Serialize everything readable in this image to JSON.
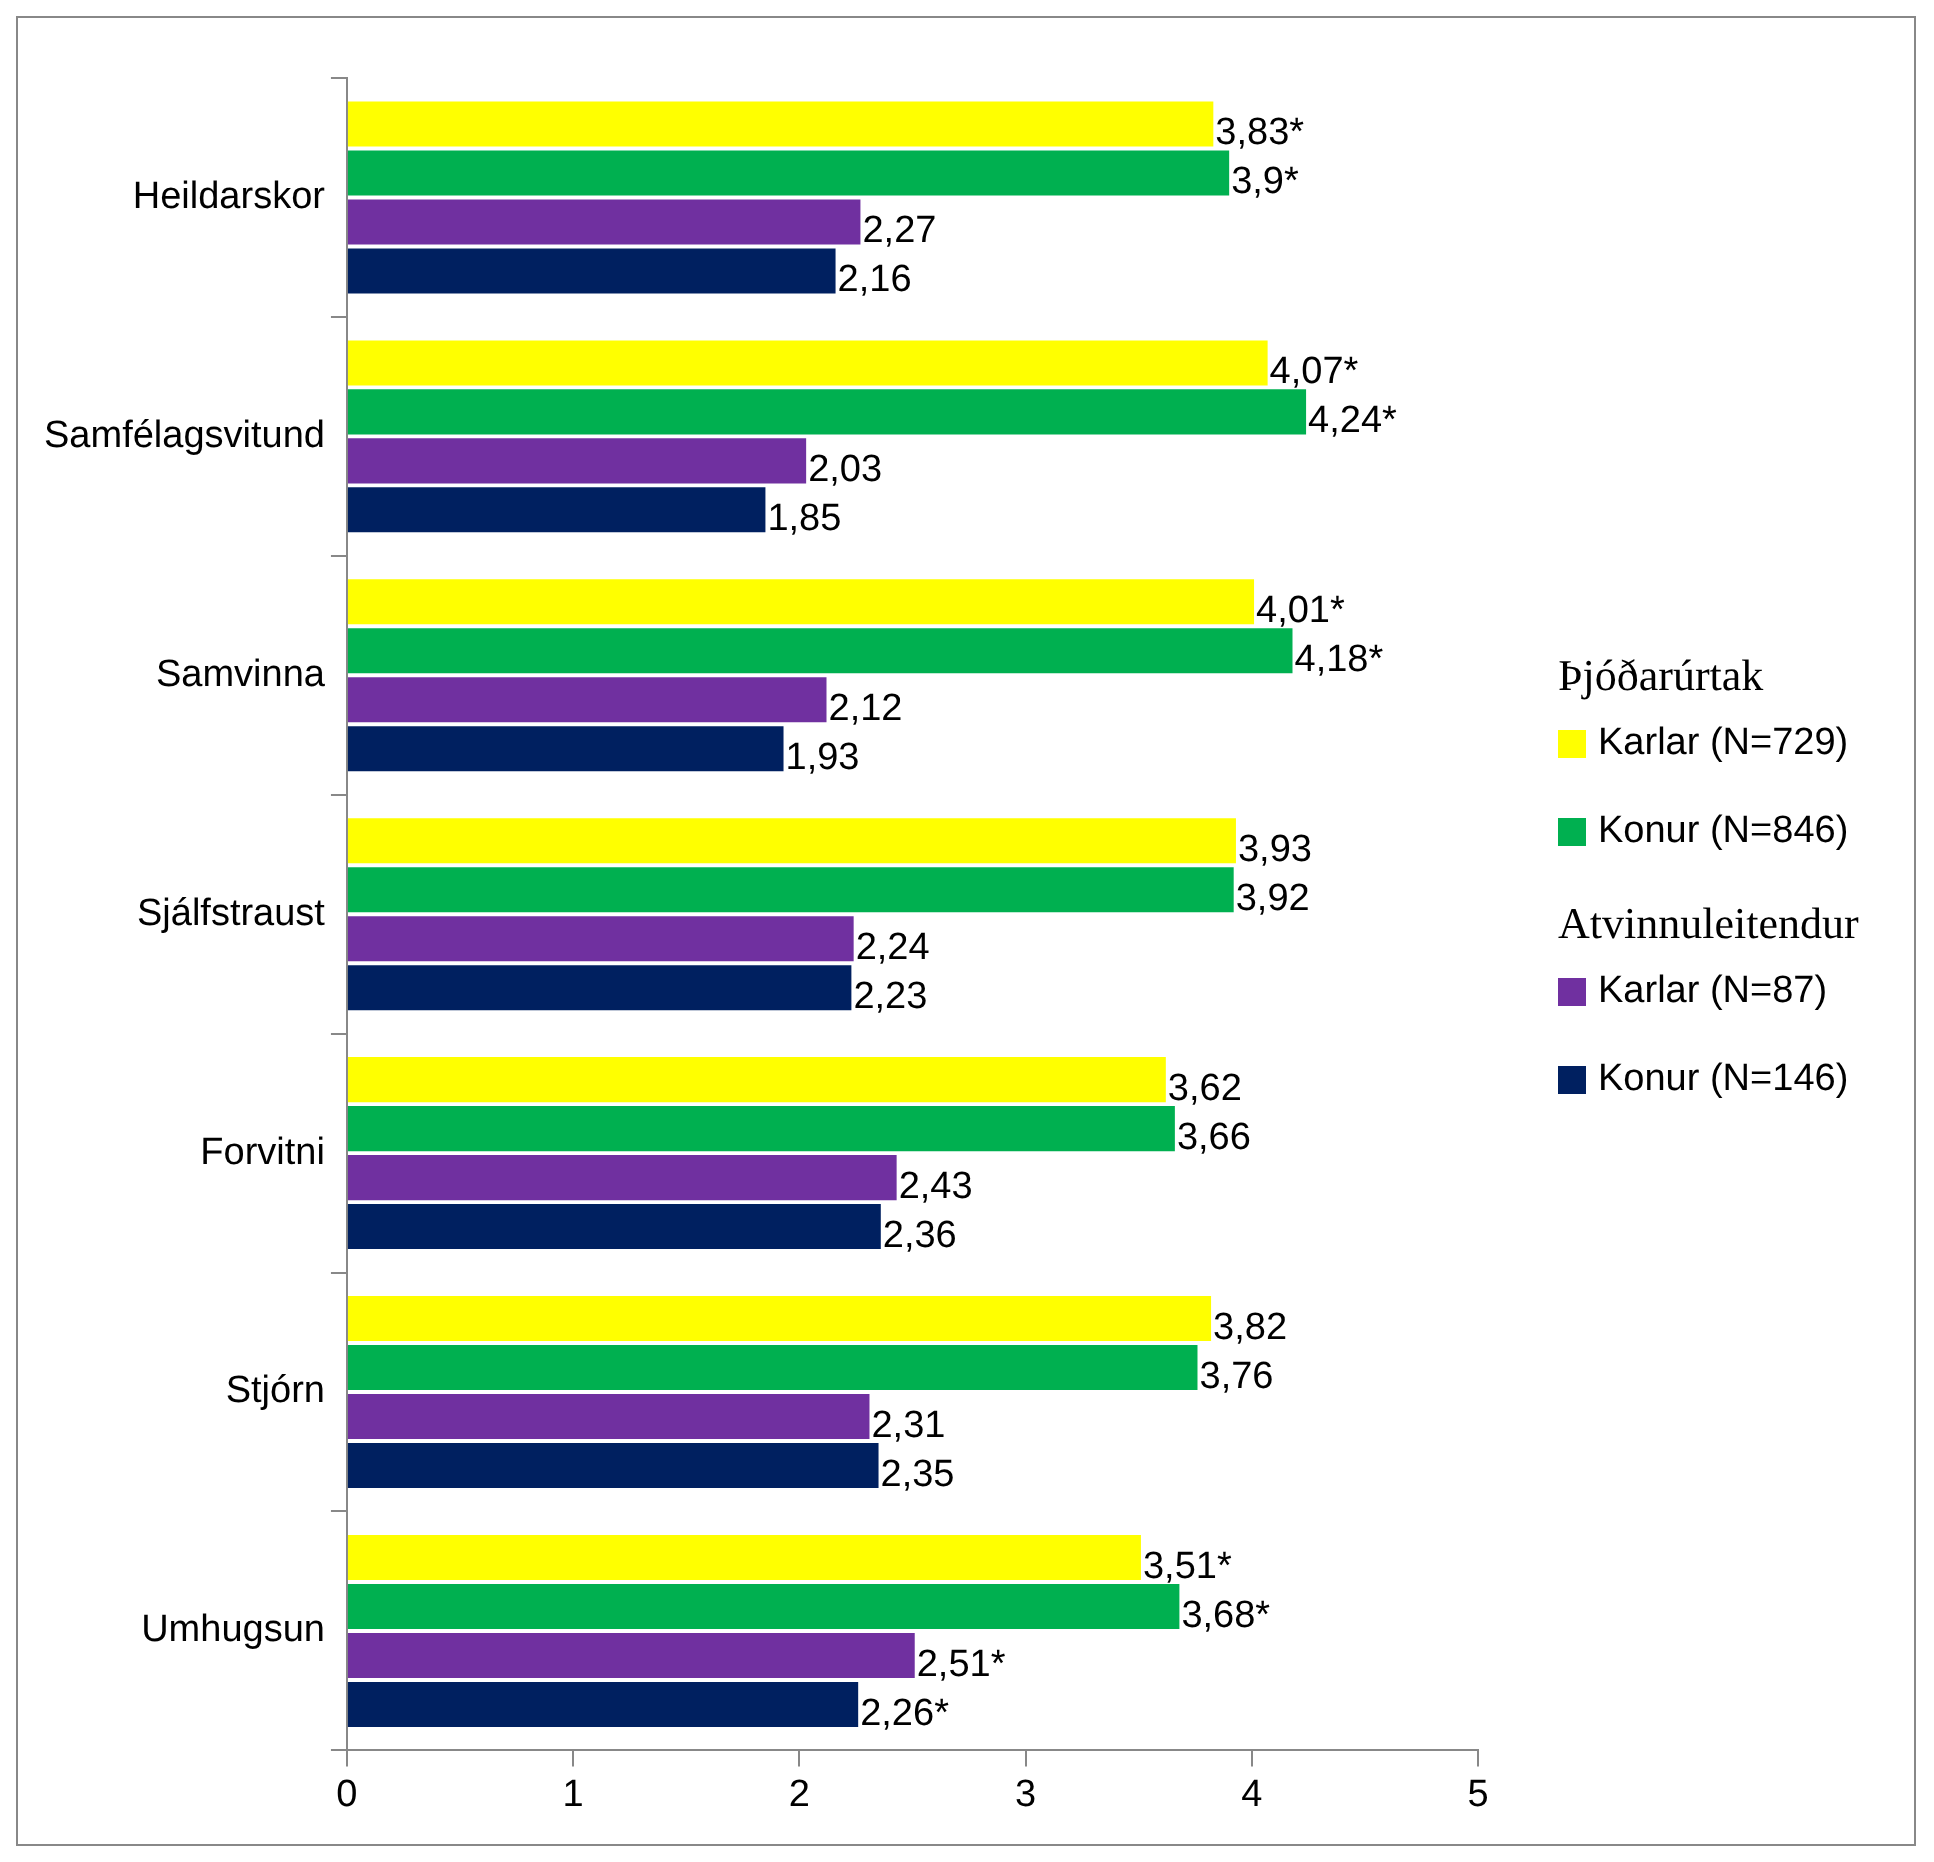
{
  "chart_data": {
    "type": "bar",
    "orientation": "horizontal",
    "categories": [
      "Heildarskor",
      "Samfélagsvitund",
      "Samvinna",
      "Sjálfstraust",
      "Forvitni",
      "Stjórn",
      "Umhugsun"
    ],
    "series": [
      {
        "name": "Karlar (N=729)",
        "color": "#ffff00",
        "values": [
          3.83,
          4.07,
          4.01,
          3.93,
          3.62,
          3.82,
          3.51
        ],
        "value_labels": [
          "3,83*",
          "4,07*",
          "4,01*",
          "3,93",
          "3,62",
          "3,82",
          "3,51*"
        ]
      },
      {
        "name": "Konur (N=846)",
        "color": "#00b050",
        "values": [
          3.9,
          4.24,
          4.18,
          3.92,
          3.66,
          3.76,
          3.68
        ],
        "value_labels": [
          "3,9*",
          "4,24*",
          "4,18*",
          "3,92",
          "3,66",
          "3,76",
          "3,68*"
        ]
      },
      {
        "name": "Karlar (N=87)",
        "color": "#7030a0",
        "values": [
          2.27,
          2.03,
          2.12,
          2.24,
          2.43,
          2.31,
          2.51
        ],
        "value_labels": [
          "2,27",
          "2,03",
          "2,12",
          "2,24",
          "2,43",
          "2,31",
          "2,51*"
        ]
      },
      {
        "name": "Konur (N=146)",
        "color": "#002060",
        "values": [
          2.16,
          1.85,
          1.93,
          2.23,
          2.36,
          2.35,
          2.26
        ],
        "value_labels": [
          "2,16",
          "1,85",
          "1,93",
          "2,23",
          "2,36",
          "2,35",
          "2,26*"
        ]
      }
    ],
    "xlim": [
      0,
      5
    ],
    "xticks": [
      0,
      1,
      2,
      3,
      4,
      5
    ],
    "grid": false,
    "legend": "right",
    "legend_title": "Þjóðarúrtak",
    "annotations": [
      "Atvinnuleitendur"
    ]
  }
}
